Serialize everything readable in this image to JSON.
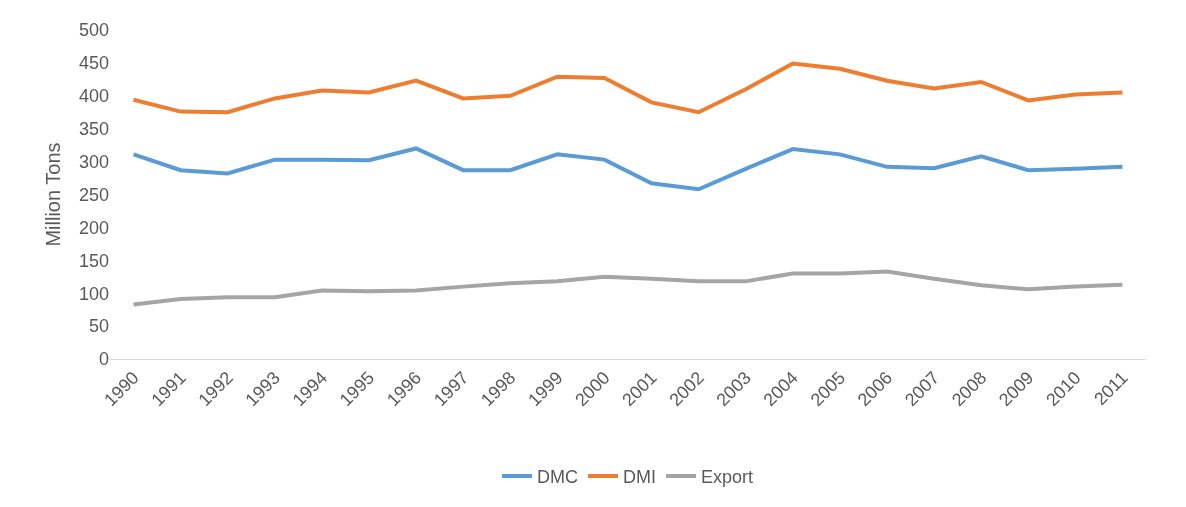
{
  "chart_data": {
    "type": "line",
    "ylabel": "Million Tons",
    "categories": [
      "1990",
      "1991",
      "1992",
      "1993",
      "1994",
      "1995",
      "1996",
      "1997",
      "1998",
      "1999",
      "2000",
      "2001",
      "2002",
      "2003",
      "2004",
      "2005",
      "2006",
      "2007",
      "2008",
      "2009",
      "2010",
      "2011"
    ],
    "series": [
      {
        "name": "DMC",
        "color": "#5b9bd5",
        "values": [
          311,
          287,
          282,
          303,
          303,
          302,
          320,
          287,
          287,
          311,
          303,
          267,
          258,
          289,
          319,
          311,
          292,
          290,
          308,
          287,
          289,
          292
        ]
      },
      {
        "name": "DMI",
        "color": "#ed7d31",
        "values": [
          394,
          376,
          375,
          396,
          408,
          405,
          423,
          396,
          400,
          429,
          427,
          390,
          375,
          410,
          449,
          441,
          423,
          411,
          421,
          393,
          402,
          405
        ]
      },
      {
        "name": "Export",
        "color": "#a5a5a5",
        "values": [
          83,
          91,
          94,
          94,
          104,
          103,
          104,
          110,
          115,
          118,
          125,
          122,
          118,
          118,
          130,
          130,
          133,
          122,
          112,
          106,
          110,
          113
        ]
      }
    ],
    "ylim": [
      0,
      500
    ],
    "yticks": [
      0,
      50,
      100,
      150,
      200,
      250,
      300,
      350,
      400,
      450,
      500
    ],
    "grid": false,
    "legend": "bottom",
    "marker": "none",
    "line_style": "solid"
  }
}
